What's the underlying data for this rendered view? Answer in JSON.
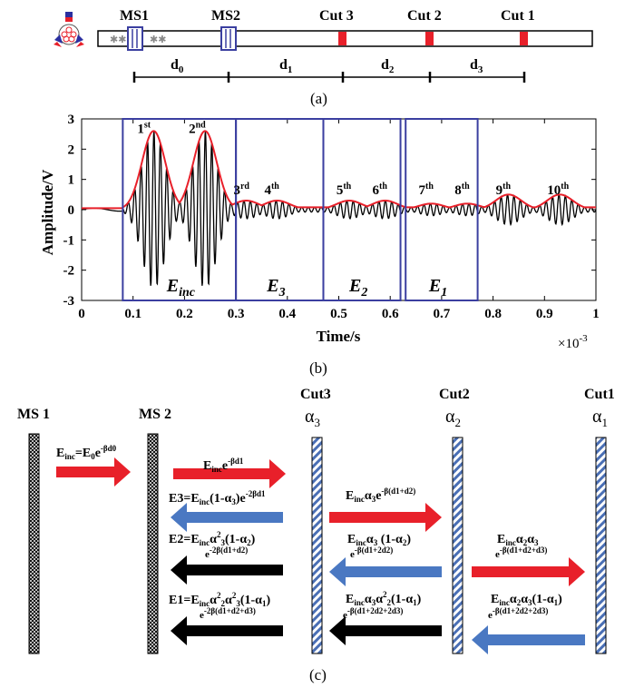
{
  "panel_a": {
    "caption": "(a)",
    "labels": {
      "ms1": "MS1",
      "ms2": "MS2",
      "cut3": "Cut 3",
      "cut2": "Cut 2",
      "cut1": "Cut 1"
    },
    "distances": {
      "d0": "0",
      "d1": "1",
      "d2": "2",
      "d3": "3",
      "d_letter": "d"
    },
    "colors": {
      "cut": "#e8202a",
      "sensor": "#3b3fa0"
    }
  },
  "panel_b": {
    "caption": "(b)",
    "ylabel": "Amplitude/V",
    "xlabel": "Time/s",
    "exponent_base": "×10",
    "exponent_power": "-3",
    "x_ticks": [
      "0",
      "0.1",
      "0.2",
      "0.3",
      "0.4",
      "0.5",
      "0.6",
      "0.7",
      "0.8",
      "0.9",
      "1"
    ],
    "y_ticks": [
      "3",
      "2",
      "1",
      "0",
      "-1",
      "-2",
      "-3"
    ],
    "peak_labels": [
      {
        "n": "1",
        "s": "st"
      },
      {
        "n": "2",
        "s": "nd"
      },
      {
        "n": "3",
        "s": "rd"
      },
      {
        "n": "4",
        "s": "th"
      },
      {
        "n": "5",
        "s": "th"
      },
      {
        "n": "6",
        "s": "th"
      },
      {
        "n": "7",
        "s": "th"
      },
      {
        "n": "8",
        "s": "th"
      },
      {
        "n": "9",
        "s": "th"
      },
      {
        "n": "10",
        "s": "th"
      }
    ],
    "boxes": [
      {
        "main": "E",
        "sub": "inc"
      },
      {
        "main": "E",
        "sub": "3"
      },
      {
        "main": "E",
        "sub": "2"
      },
      {
        "main": "E",
        "sub": "1"
      }
    ]
  },
  "chart_data": {
    "type": "line",
    "xlabel": "Time/s",
    "ylabel": "Amplitude/V",
    "xlim": [
      0,
      0.001
    ],
    "ylim": [
      -3,
      3
    ],
    "x_scale_label": "×10^-3",
    "series": [],
    "envelope_peaks": [
      {
        "label": "1st",
        "t_ms": 0.14,
        "amp": 2.6
      },
      {
        "label": "2nd",
        "t_ms": 0.24,
        "amp": 2.6
      },
      {
        "label": "3rd",
        "t_ms": 0.32,
        "amp": 0.3
      },
      {
        "label": "4th",
        "t_ms": 0.38,
        "amp": 0.3
      },
      {
        "label": "5th",
        "t_ms": 0.52,
        "amp": 0.3
      },
      {
        "label": "6th",
        "t_ms": 0.59,
        "amp": 0.3
      },
      {
        "label": "7th",
        "t_ms": 0.68,
        "amp": 0.2
      },
      {
        "label": "8th",
        "t_ms": 0.75,
        "amp": 0.2
      },
      {
        "label": "9th",
        "t_ms": 0.83,
        "amp": 0.5
      },
      {
        "label": "10th",
        "t_ms": 0.93,
        "amp": 0.5
      }
    ],
    "windows_ms": [
      {
        "name": "E_inc",
        "from": 0.08,
        "to": 0.3
      },
      {
        "name": "E_3",
        "from": 0.3,
        "to": 0.47
      },
      {
        "name": "E_2",
        "from": 0.47,
        "to": 0.62
      },
      {
        "name": "E_1",
        "from": 0.63,
        "to": 0.77
      }
    ],
    "grid": false,
    "colors": {
      "signal": "#000000",
      "envelope": "#e8202a",
      "window": "#3b3fa0"
    }
  },
  "panel_c": {
    "caption": "(c)",
    "ms1": "MS 1",
    "ms2": "MS 2",
    "cut3": "Cut3",
    "cut2": "Cut2",
    "cut1": "Cut1",
    "alpha": "α",
    "alpha_subs": [
      "3",
      "2",
      "1"
    ],
    "colors": {
      "forward": "#e8202a",
      "e3": "#4a78c2",
      "reflect": "#000000"
    }
  }
}
